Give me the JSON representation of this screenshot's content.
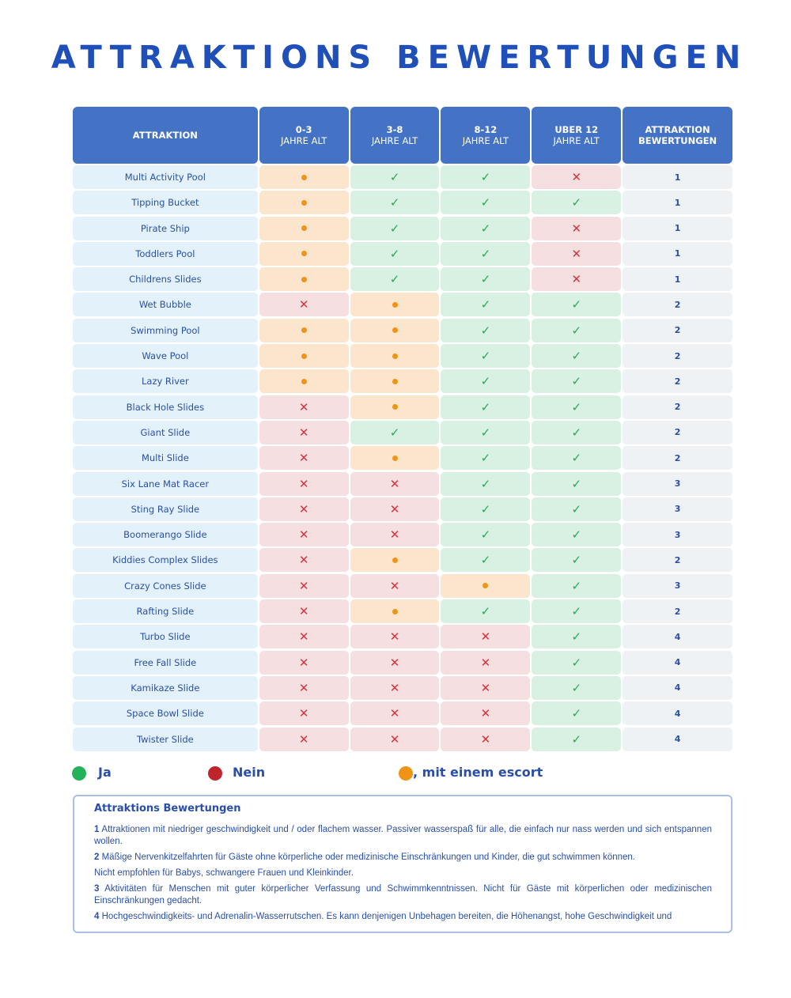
{
  "title": "ATTRAKTIONS BEWERTUNGEN",
  "colors": {
    "header": "#4472c4",
    "yes": "#2aa85a",
    "no": "#d8333b",
    "escort": "#ef9416"
  },
  "headers": {
    "name": "ATTRAKTION",
    "age1": {
      "top": "0-3",
      "bottom": "JAHRE ALT"
    },
    "age2": {
      "top": "3-8",
      "bottom": "JAHRE ALT"
    },
    "age3": {
      "top": "8-12",
      "bottom": "JAHRE ALT"
    },
    "age4": {
      "top": "UBER 12",
      "bottom": "JAHRE ALT"
    },
    "rating": {
      "top": "ATTRAKTION",
      "bottom": "BEWERTUNGEN"
    }
  },
  "rows": [
    {
      "name": "Multi Activity Pool",
      "ages": [
        "escort",
        "yes",
        "yes",
        "no"
      ],
      "rating": "1"
    },
    {
      "name": "Tipping Bucket",
      "ages": [
        "escort",
        "yes",
        "yes",
        "yes"
      ],
      "rating": "1"
    },
    {
      "name": "Pirate Ship",
      "ages": [
        "escort",
        "yes",
        "yes",
        "no"
      ],
      "rating": "1"
    },
    {
      "name": "Toddlers Pool",
      "ages": [
        "escort",
        "yes",
        "yes",
        "no"
      ],
      "rating": "1"
    },
    {
      "name": "Childrens Slides",
      "ages": [
        "escort",
        "yes",
        "yes",
        "no"
      ],
      "rating": "1"
    },
    {
      "name": "Wet Bubble",
      "ages": [
        "no",
        "escort",
        "yes",
        "yes"
      ],
      "rating": "2"
    },
    {
      "name": "Swimming Pool",
      "ages": [
        "escort",
        "escort",
        "yes",
        "yes"
      ],
      "rating": "2"
    },
    {
      "name": "Wave Pool",
      "ages": [
        "escort",
        "escort",
        "yes",
        "yes"
      ],
      "rating": "2"
    },
    {
      "name": "Lazy River",
      "ages": [
        "escort",
        "escort",
        "yes",
        "yes"
      ],
      "rating": "2"
    },
    {
      "name": "Black Hole Slides",
      "ages": [
        "no",
        "escort",
        "yes",
        "yes"
      ],
      "rating": "2"
    },
    {
      "name": "Giant Slide",
      "ages": [
        "no",
        "yes",
        "yes",
        "yes"
      ],
      "rating": "2"
    },
    {
      "name": "Multi Slide",
      "ages": [
        "no",
        "escort",
        "yes",
        "yes"
      ],
      "rating": "2"
    },
    {
      "name": "Six Lane Mat Racer",
      "ages": [
        "no",
        "no",
        "yes",
        "yes"
      ],
      "rating": "3"
    },
    {
      "name": "Sting Ray Slide",
      "ages": [
        "no",
        "no",
        "yes",
        "yes"
      ],
      "rating": "3"
    },
    {
      "name": "Boomerango Slide",
      "ages": [
        "no",
        "no",
        "yes",
        "yes"
      ],
      "rating": "3"
    },
    {
      "name": "Kiddies Complex Slides",
      "ages": [
        "no",
        "escort",
        "yes",
        "yes"
      ],
      "rating": "2"
    },
    {
      "name": "Crazy Cones Slide",
      "ages": [
        "no",
        "no",
        "escort",
        "yes"
      ],
      "rating": "3"
    },
    {
      "name": "Rafting Slide",
      "ages": [
        "no",
        "escort",
        "yes",
        "yes"
      ],
      "rating": "2"
    },
    {
      "name": "Turbo Slide",
      "ages": [
        "no",
        "no",
        "no",
        "yes"
      ],
      "rating": "4"
    },
    {
      "name": "Free Fall Slide",
      "ages": [
        "no",
        "no",
        "no",
        "yes"
      ],
      "rating": "4"
    },
    {
      "name": "Kamikaze Slide",
      "ages": [
        "no",
        "no",
        "no",
        "yes"
      ],
      "rating": "4"
    },
    {
      "name": "Space Bowl Slide",
      "ages": [
        "no",
        "no",
        "no",
        "yes"
      ],
      "rating": "4"
    },
    {
      "name": "Twister Slide",
      "ages": [
        "no",
        "no",
        "no",
        "yes"
      ],
      "rating": "4"
    }
  ],
  "legend": {
    "yes": "Ja",
    "no": "Nein",
    "escort": ", mit einem escort"
  },
  "notes": {
    "title": "Attraktions Bewertungen",
    "items": [
      {
        "num": "1",
        "text": " Attraktionen mit niedriger geschwindigkeit und / oder flachem wasser. Passiver wasserspaß für alle, die einfach nur nass werden und sich entspannen wollen."
      },
      {
        "num": "2",
        "text": " Mäßige Nervenkitzelfahrten für Gäste ohne körperliche oder medizinische Einschränkungen und Kinder, die gut schwimmen können."
      },
      {
        "num": "",
        "text": " Nicht empfohlen für Babys, schwangere Frauen und  Kleinkinder."
      },
      {
        "num": "3",
        "text": " Aktivitäten für Menschen mit guter körperlicher Verfassung und Schwimmkenntnissen.  Nicht für Gäste mit körperlichen oder medizinischen Einschränkungen gedacht."
      },
      {
        "num": "4",
        "text": " Hochgeschwindigkeits- und Adrenalin-Wasserrutschen. Es kann denjenigen Unbehagen bereiten, die Höhenangst, hohe Geschwindigkeit und"
      }
    ]
  }
}
